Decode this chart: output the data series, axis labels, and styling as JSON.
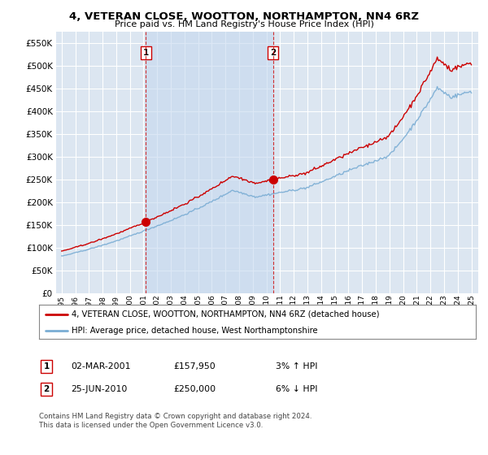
{
  "title": "4, VETERAN CLOSE, WOOTTON, NORTHAMPTON, NN4 6RZ",
  "subtitle": "Price paid vs. HM Land Registry's House Price Index (HPI)",
  "legend_line1": "4, VETERAN CLOSE, WOOTTON, NORTHAMPTON, NN4 6RZ (detached house)",
  "legend_line2": "HPI: Average price, detached house, West Northamptonshire",
  "annotation1_date": "02-MAR-2001",
  "annotation1_price": "£157,950",
  "annotation1_hpi": "3% ↑ HPI",
  "annotation2_date": "25-JUN-2010",
  "annotation2_price": "£250,000",
  "annotation2_hpi": "6% ↓ HPI",
  "footnote": "Contains HM Land Registry data © Crown copyright and database right 2024.\nThis data is licensed under the Open Government Licence v3.0.",
  "background_color": "#ffffff",
  "plot_bg_color": "#dce6f1",
  "shade_color": "#c5d8ef",
  "grid_color": "#ffffff",
  "red_line_color": "#cc0000",
  "blue_line_color": "#7aadd4",
  "year1": 2001.17,
  "year2": 2010.48,
  "price1": 157950,
  "price2": 250000,
  "ylim_min": 0,
  "ylim_max": 575000
}
